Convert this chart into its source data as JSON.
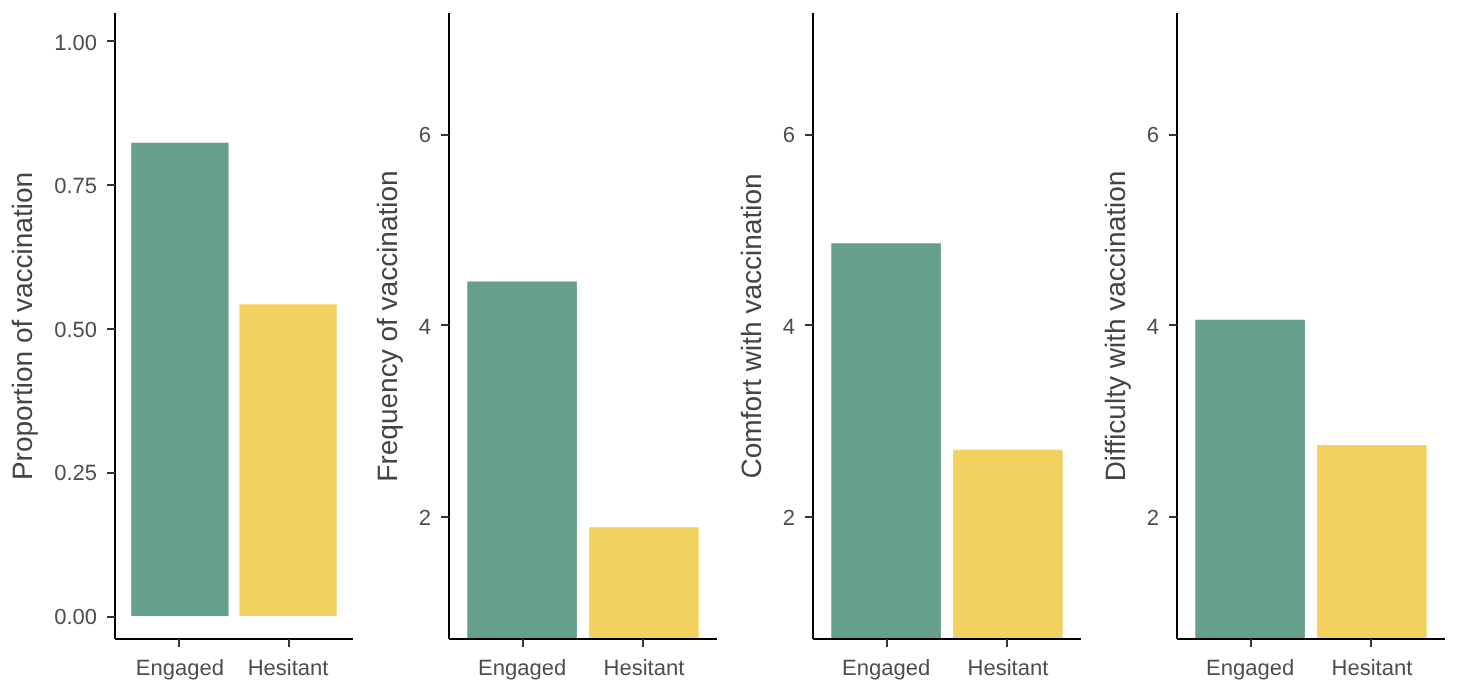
{
  "chart_data": [
    {
      "type": "bar",
      "ylabel": "Proportion of vaccination",
      "categories": [
        "Engaged",
        "Hesitant"
      ],
      "values": [
        0.824,
        0.543
      ],
      "colors": [
        "#64a08a",
        "#f2d161"
      ],
      "ylim": [
        -0.04,
        1.05
      ],
      "yticks": [
        {
          "value": 0,
          "label": "0.00"
        },
        {
          "value": 0.25,
          "label": "0.25"
        },
        {
          "value": 0.5,
          "label": "0.50"
        },
        {
          "value": 0.75,
          "label": "0.75"
        },
        {
          "value": 1,
          "label": "1.00"
        }
      ],
      "grid": false
    },
    {
      "type": "bar",
      "ylabel": "Frequency of vaccination",
      "categories": [
        "Engaged",
        "Hesitant"
      ],
      "values": [
        4.46,
        1.89
      ],
      "colors": [
        "#64a08a",
        "#f2d161"
      ],
      "ylim": [
        0.72,
        7.27
      ],
      "yticks": [
        2,
        4,
        6
      ],
      "grid": false
    },
    {
      "type": "bar",
      "ylabel": "Comfort with vaccination",
      "categories": [
        "Engaged",
        "Hesitant"
      ],
      "values": [
        4.86,
        2.7
      ],
      "colors": [
        "#64a08a",
        "#f2d161"
      ],
      "ylim": [
        0.72,
        7.27
      ],
      "yticks": [
        2,
        4,
        6
      ],
      "grid": false
    },
    {
      "type": "bar",
      "ylabel": "Difficulty with vaccination",
      "categories": [
        "Engaged",
        "Hesitant"
      ],
      "values": [
        4.06,
        2.75
      ],
      "colors": [
        "#64a08a",
        "#f2d161"
      ],
      "ylim": [
        0.72,
        7.27
      ],
      "yticks": [
        2,
        4,
        6
      ],
      "grid": false
    }
  ]
}
